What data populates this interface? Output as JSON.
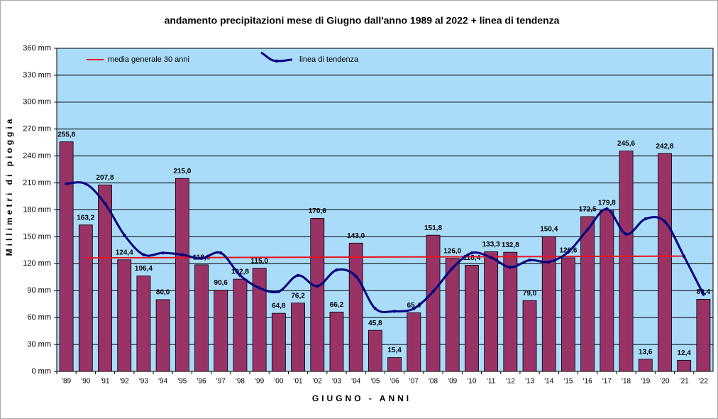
{
  "chart_data": {
    "type": "bar",
    "title": "andamento precipitazioni mese di Giugno dall'anno 1989 al 2022 + linea di tendenza",
    "x_label": "GIUGNO - ANNI",
    "y_label": "Millimetri di pioggia",
    "categories": [
      "'89",
      "'90",
      "'91",
      "'92",
      "'93",
      "'94",
      "'95",
      "'96",
      "'97",
      "'98",
      "'99",
      "'00",
      "'01",
      "'02",
      "'03",
      "'04",
      "'05",
      "'06",
      "'07",
      "'08",
      "'09",
      "'10",
      "'11",
      "'12",
      "'13",
      "'14",
      "'15",
      "'16",
      "'17",
      "'18",
      "'19",
      "'20",
      "'21",
      "'22"
    ],
    "values": [
      255.8,
      163.2,
      207.8,
      124.4,
      106.4,
      80.0,
      215.0,
      118.8,
      90.6,
      102.8,
      115.0,
      64.8,
      76.2,
      170.6,
      66.2,
      143.0,
      45.8,
      15.4,
      65.4,
      151.8,
      126.0,
      118.4,
      133.3,
      132.8,
      79.0,
      150.4,
      126.6,
      172.5,
      179.8,
      245.6,
      13.6,
      242.8,
      12.4,
      80.4
    ],
    "value_labels": [
      "255,8",
      "163,2",
      "207,8",
      "124,4",
      "106,4",
      "80,0",
      "215,0",
      "118,8",
      "90,6",
      "102,8",
      "115,0",
      "64,8",
      "76,2",
      "170,6",
      "66,2",
      "143,0",
      "45,8",
      "15,4",
      "65,4",
      "151,8",
      "126,0",
      "118,4",
      "133,3",
      "132,8",
      "79,0",
      "150,4",
      "126,6",
      "172,5",
      "179,8",
      "245,6",
      "13,6",
      "242,8",
      "12,4",
      "80,4"
    ],
    "color": "#993366",
    "mean_line": {
      "name": "media generale 30 anni",
      "color": "#e8141e",
      "x": [
        "'90",
        "'21"
      ],
      "values": [
        126.5,
        128.5
      ]
    },
    "trend": {
      "name": "linea di tendenza",
      "color": "#000080",
      "values": [
        209,
        209,
        187,
        152,
        130,
        132,
        130,
        126,
        132,
        107,
        93,
        89,
        107,
        95,
        113,
        106,
        70,
        67,
        70,
        89,
        115,
        132,
        127,
        116,
        124,
        122,
        133,
        158,
        181,
        153,
        170,
        167,
        128,
        86
      ]
    },
    "ylim": [
      0,
      360
    ],
    "yticks": [
      {
        "value": 0,
        "label": "0 mm"
      },
      {
        "value": 30,
        "label": "30 mm"
      },
      {
        "value": 60,
        "label": "60 mm"
      },
      {
        "value": 90,
        "label": "90 mm"
      },
      {
        "value": 120,
        "label": "120 mm"
      },
      {
        "value": 150,
        "label": "150 mm"
      },
      {
        "value": 180,
        "label": "180 mm"
      },
      {
        "value": 210,
        "label": "210 mm"
      },
      {
        "value": 240,
        "label": "240 mm"
      },
      {
        "value": 270,
        "label": "270 mm"
      },
      {
        "value": 300,
        "label": "300 mm"
      },
      {
        "value": 330,
        "label": "330 mm"
      },
      {
        "value": 360,
        "label": "360 mm"
      }
    ],
    "grid": true,
    "plot_background": "#aadcfa"
  }
}
